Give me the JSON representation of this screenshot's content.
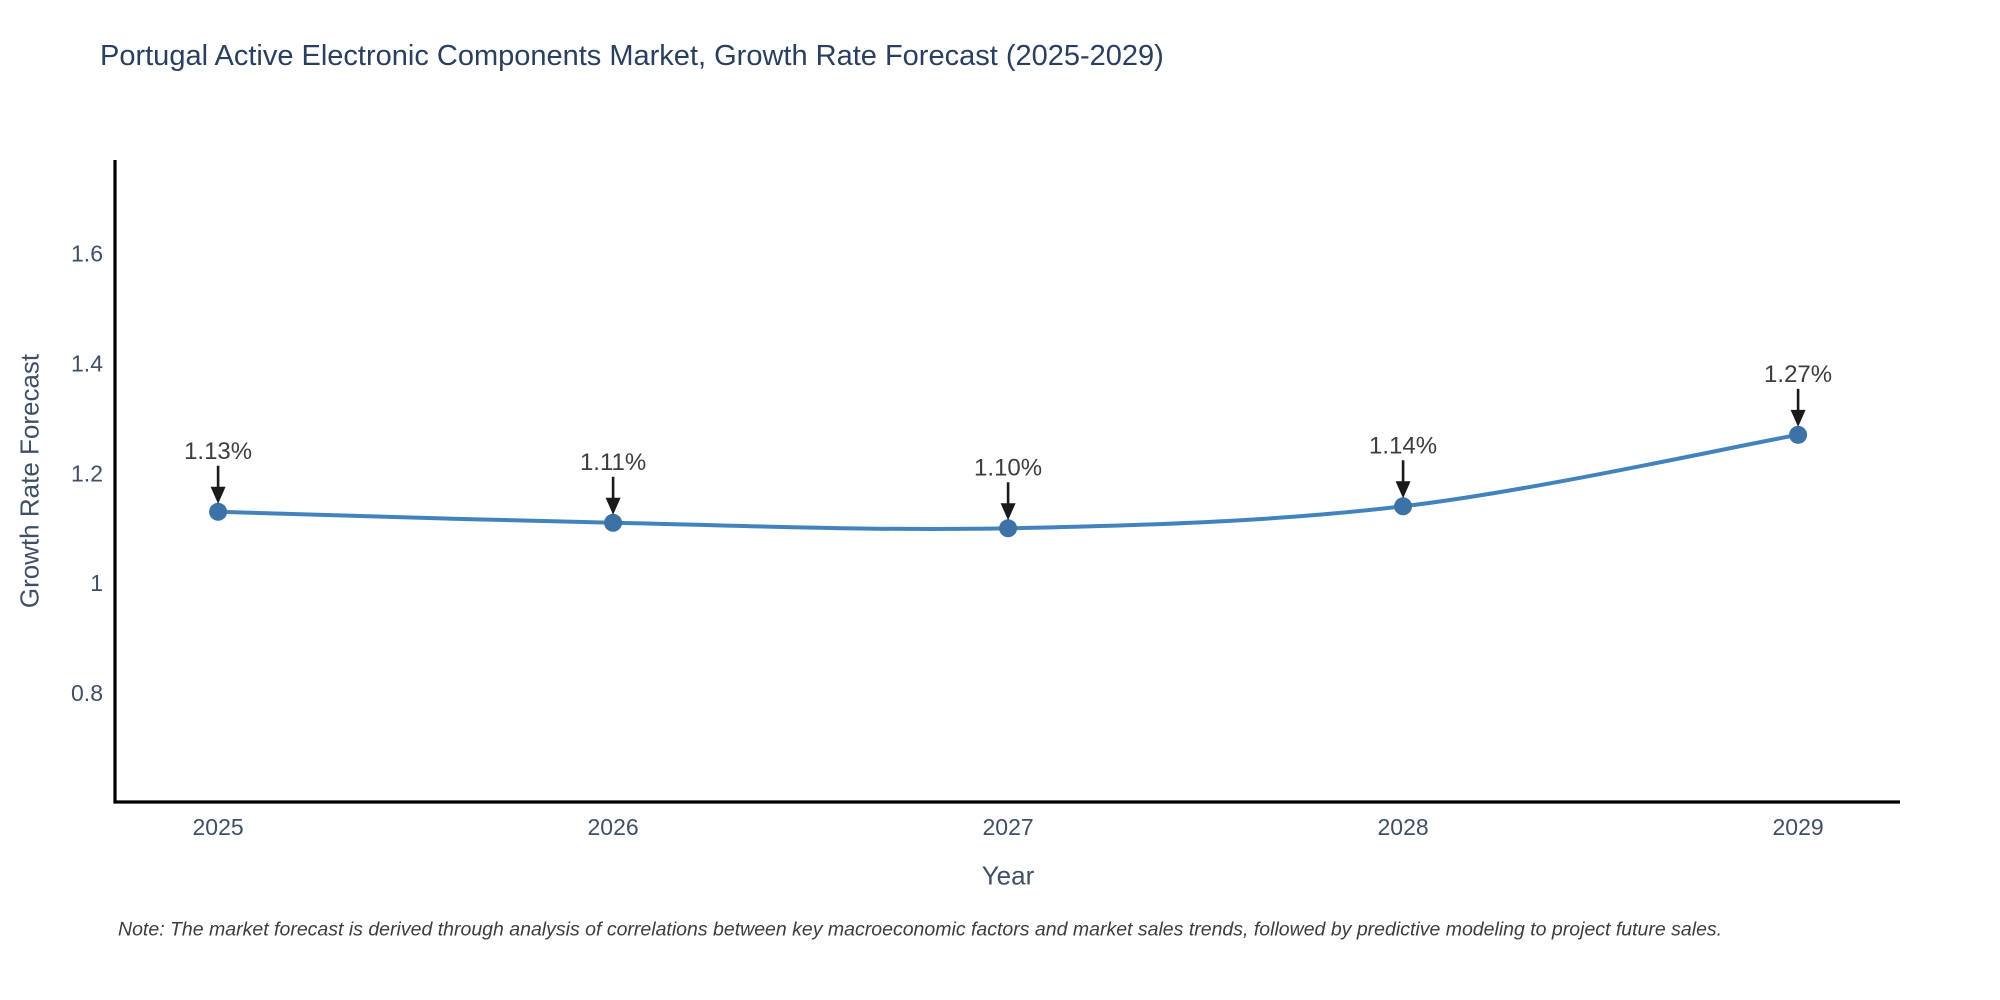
{
  "title": "Portugal Active Electronic Components Market, Growth Rate Forecast (2025-2029)",
  "note": "Note: The market forecast is derived through analysis of correlations between key macroeconomic factors and market sales trends, followed by predictive modeling to project future sales.",
  "chart_data": {
    "type": "line",
    "title": "Portugal Active Electronic Components Market, Growth Rate Forecast (2025-2029)",
    "xlabel": "Year",
    "ylabel": "Growth Rate Forecast",
    "x": [
      2025,
      2026,
      2027,
      2028,
      2029
    ],
    "values": [
      1.13,
      1.11,
      1.1,
      1.14,
      1.27
    ],
    "point_labels": [
      "1.13%",
      "1.11%",
      "1.10%",
      "1.14%",
      "1.27%"
    ],
    "x_tick_labels": [
      "2025",
      "2026",
      "2027",
      "2028",
      "2029"
    ],
    "y_ticks": [
      0.8,
      1.0,
      1.2,
      1.4,
      1.6
    ],
    "y_tick_labels": [
      "0.8",
      "1",
      "1.2",
      "1.4",
      "1.6"
    ],
    "xlim": [
      2024.739,
      2029.258
    ],
    "ylim": [
      0.602,
      1.77
    ],
    "grid": false,
    "legend": "none",
    "line_shape": "spline",
    "colors": {
      "line": "#4383bd",
      "marker": "#3c72a6",
      "axis": "#000000",
      "tick_label": "#3f4f66",
      "annotation_text": "#3d3d3d",
      "annotation_arrow": "#1a1a1a",
      "title": "#2a3f5f",
      "background": "#ffffff"
    }
  }
}
